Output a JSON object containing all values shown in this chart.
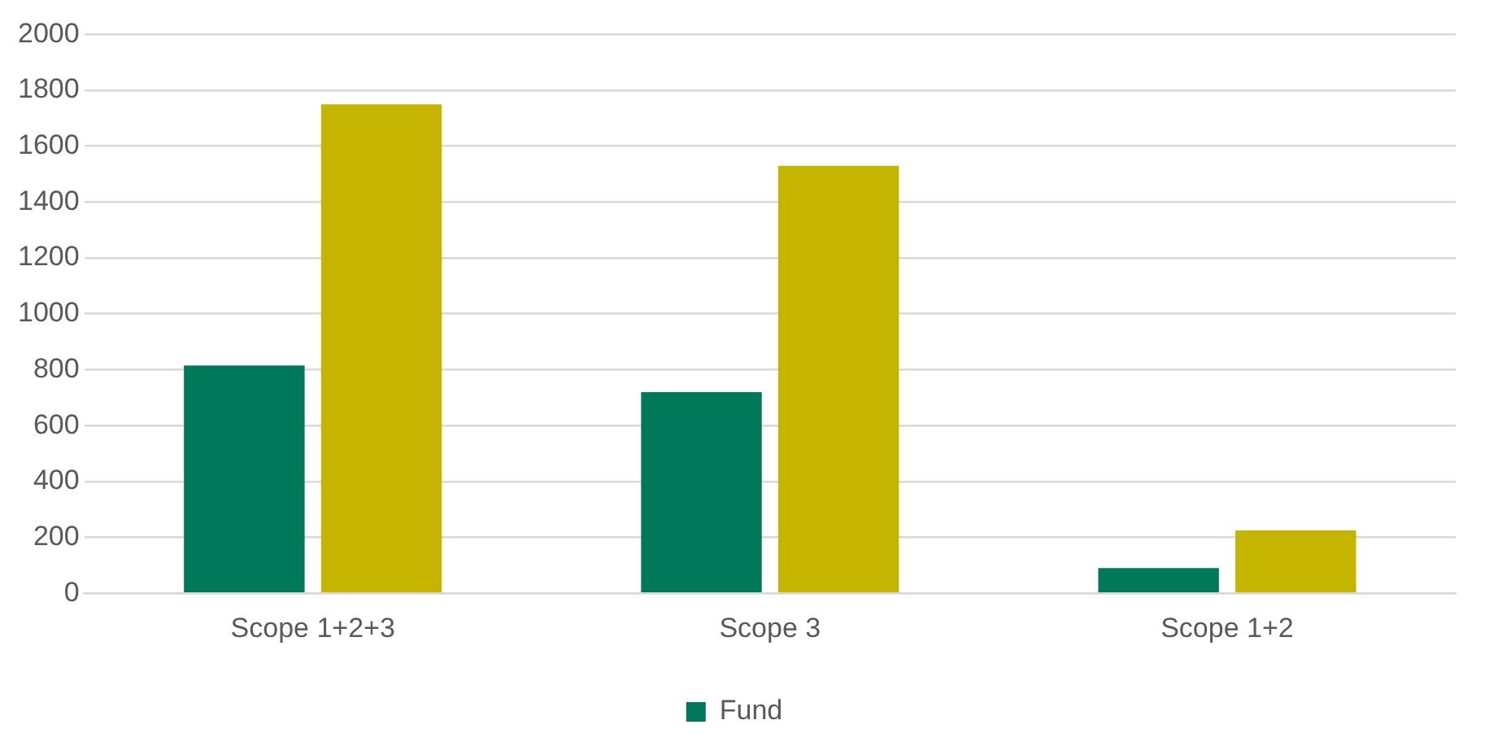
{
  "chart_data": {
    "type": "bar",
    "categories": [
      "Scope 1+2+3",
      "Scope 3",
      "Scope 1+2"
    ],
    "series": [
      {
        "name": "Fund",
        "color": "#00785a",
        "values": [
          815,
          720,
          90
        ]
      },
      {
        "color": "#c5b400",
        "values": [
          1750,
          1530,
          225
        ]
      }
    ],
    "ylim": [
      0,
      2000
    ],
    "yticks": [
      0,
      200,
      400,
      600,
      800,
      1000,
      1200,
      1400,
      1600,
      1800,
      2000
    ],
    "grid": "y",
    "legend": "bottom"
  }
}
